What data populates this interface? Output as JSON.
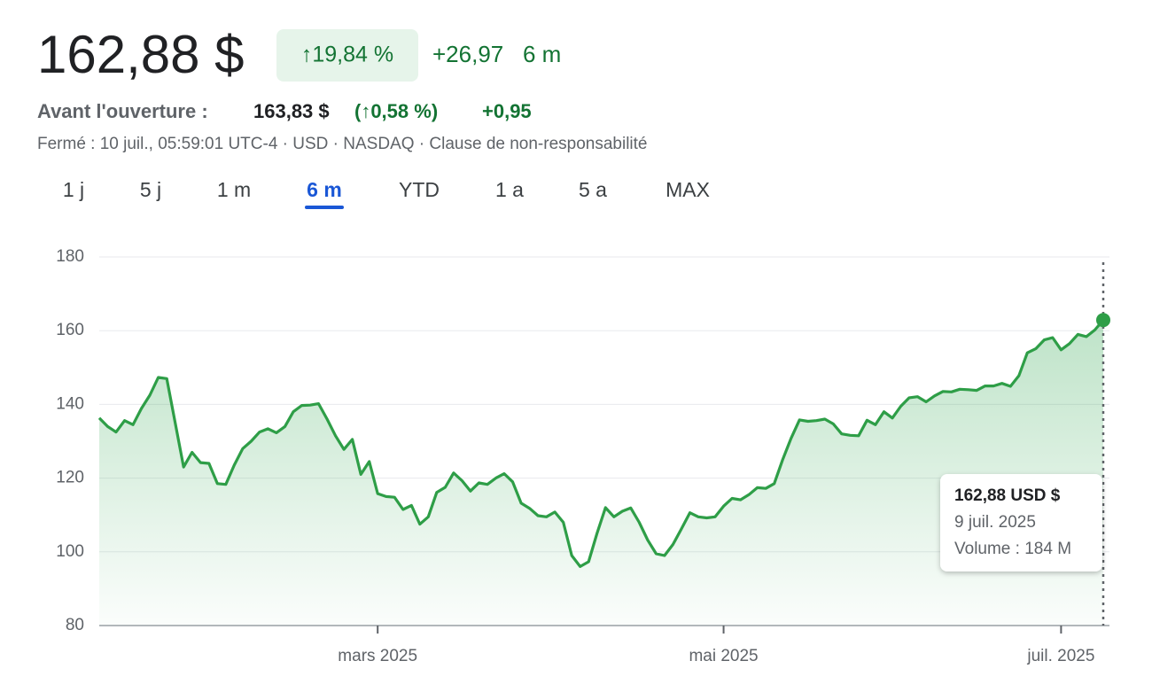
{
  "header": {
    "price": "162,88 $",
    "change_pct": "↑19,84 %",
    "change": "+26,97",
    "period": "6 m",
    "premarket_label": "Avant l'ouverture :",
    "premarket_price": "163,83 $",
    "premarket_pct": "(↑0,58 %)",
    "premarket_change": "+0,95",
    "status": "Fermé : 10 juil., 05:59:01 UTC-4 · USD · NASDAQ · Clause de non-responsabilité"
  },
  "tabs": [
    "1 j",
    "5 j",
    "1 m",
    "6 m",
    "YTD",
    "1 a",
    "5 a",
    "MAX"
  ],
  "selected_tab": 3,
  "tooltip": {
    "price": "162,88 USD $",
    "date": "9 juil. 2025",
    "volume": "Volume : 184 M"
  },
  "chart_data": {
    "type": "line",
    "color": "#2e9e47",
    "grid": true,
    "ylim": [
      80,
      180
    ],
    "yticks": [
      80,
      100,
      120,
      140,
      160,
      180
    ],
    "categories": [
      null,
      null,
      null,
      null,
      null,
      null,
      null,
      null,
      null,
      null,
      null,
      null,
      null,
      null,
      null,
      null,
      null,
      null,
      null,
      null,
      null,
      null,
      null,
      null,
      null,
      null,
      null,
      null,
      null,
      null,
      null,
      null,
      null,
      "mars 2025",
      null,
      null,
      null,
      null,
      null,
      null,
      null,
      null,
      null,
      null,
      null,
      null,
      null,
      null,
      null,
      null,
      null,
      null,
      null,
      null,
      null,
      null,
      null,
      null,
      null,
      null,
      null,
      null,
      null,
      null,
      null,
      null,
      null,
      null,
      null,
      null,
      null,
      null,
      null,
      null,
      "mai 2025",
      null,
      null,
      null,
      null,
      null,
      null,
      null,
      null,
      null,
      null,
      null,
      null,
      null,
      null,
      null,
      null,
      null,
      null,
      null,
      null,
      null,
      null,
      null,
      null,
      null,
      null,
      null,
      null,
      null,
      null,
      null,
      null,
      null,
      null,
      null,
      null,
      null,
      null,
      null,
      "juil. 2025",
      null,
      null,
      null,
      null,
      null
    ],
    "values": [
      136.3,
      134,
      132.5,
      135.6,
      134.5,
      138.9,
      142.5,
      147.3,
      147,
      135,
      123,
      127,
      124.2,
      124,
      118.5,
      118.3,
      123.5,
      128,
      130,
      132.5,
      133.4,
      132.3,
      134,
      138,
      139.7,
      139.8,
      140.2,
      136,
      131.5,
      127.8,
      130.5,
      121,
      124.5,
      115.8,
      115,
      114.8,
      111.5,
      112.6,
      107.5,
      109.5,
      116.1,
      117.5,
      121.4,
      119.3,
      116.5,
      118.7,
      118.3,
      120,
      121.2,
      119,
      113.2,
      111.8,
      109.8,
      109.5,
      110.8,
      108,
      99,
      96,
      97.3,
      105,
      112,
      109.5,
      111,
      111.9,
      108,
      103.2,
      99.5,
      99,
      102,
      106.2,
      110.6,
      109.5,
      109.2,
      109.5,
      112.4,
      114.5,
      114.1,
      115.5,
      117.4,
      117.2,
      118.5,
      125,
      130.8,
      135.8,
      135.4,
      135.6,
      136,
      134.7,
      132,
      131.6,
      131.5,
      135.7,
      134.5,
      138,
      136.3,
      139.5,
      141.8,
      142.1,
      140.7,
      142.3,
      143.5,
      143.4,
      144.1,
      144,
      143.8,
      145,
      145,
      145.7,
      144.9,
      147.8,
      154,
      155.1,
      157.5,
      158.1,
      154.8,
      156.5,
      159,
      158.4,
      160.2,
      162.88
    ]
  }
}
